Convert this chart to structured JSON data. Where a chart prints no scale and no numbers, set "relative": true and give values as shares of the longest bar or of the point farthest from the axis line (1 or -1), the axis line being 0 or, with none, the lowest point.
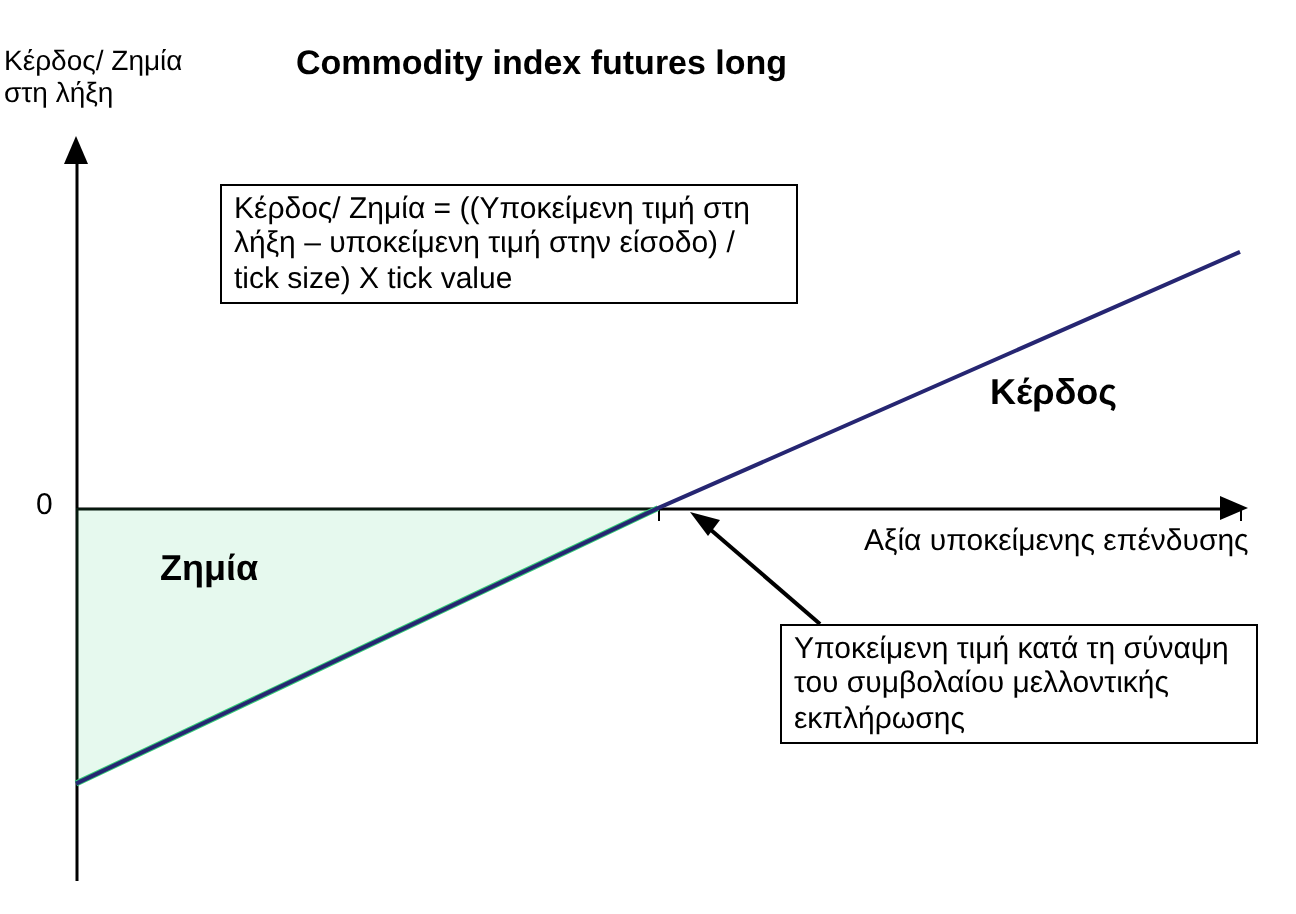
{
  "chart_data": {
    "type": "line",
    "title": "Commodity index futures long",
    "xlabel": "Αξία υποκείμενης επένδυσης",
    "relative": true,
    "categories": [
      null,
      null,
      null
    ],
    "series": [
      {
        "type": "area",
        "color": "#33cc77",
        "values": [
          -1,
          0,
          null
        ]
      },
      {
        "color": "#262672",
        "values": [
          -1,
          0,
          0.93
        ]
      }
    ],
    "annotations": [
      "Κέρδος/ Ζημία = ((Υποκείμενη τιμή στη λήξη – υποκείμενη τιμή στην είσοδο) / tick size) X tick value",
      "Κέρδος",
      "Ζημία",
      "Υποκείμενη τιμή κατά τη σύναψη του συμβολαίου μελλοντικής εκπλήρωσης",
      "0",
      "Κέρδος/ Ζημία στη λήξη"
    ]
  }
}
